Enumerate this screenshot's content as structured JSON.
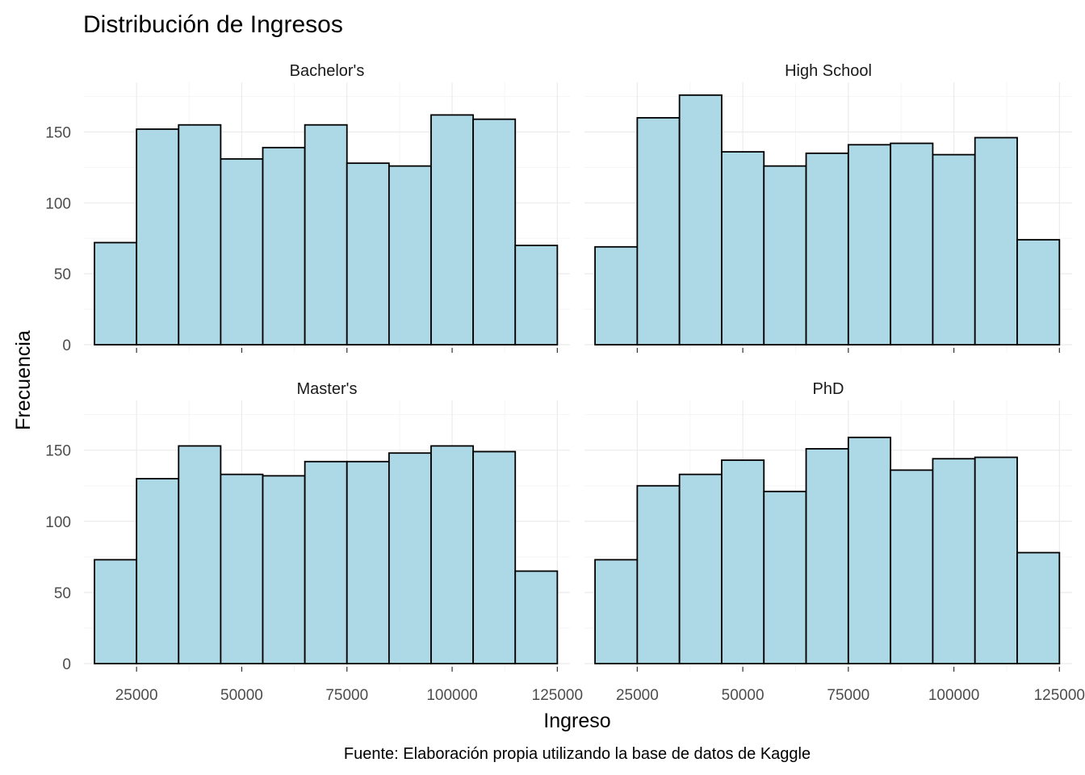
{
  "chart_data": {
    "type": "bar",
    "title": "Distribución de Ingresos",
    "xlabel": "Ingreso",
    "ylabel": "Frecuencia",
    "caption": "Fuente: Elaboración propia utilizando la base de datos de Kaggle",
    "bin_width": 10000,
    "bin_starts": [
      15000,
      25000,
      35000,
      45000,
      55000,
      65000,
      75000,
      85000,
      95000,
      105000,
      115000
    ],
    "x_ticks": [
      25000,
      50000,
      75000,
      100000,
      125000
    ],
    "x_tick_labels": [
      "25000",
      "50000",
      "75000",
      "100000",
      "125000"
    ],
    "y_ticks": [
      0,
      50,
      100,
      150
    ],
    "y_tick_labels": [
      "0",
      "50",
      "100",
      "150"
    ],
    "xlim": [
      12500,
      128000
    ],
    "ylim": [
      0,
      185
    ],
    "grid": true,
    "bar_color": "#add8e6",
    "bar_outline": "#000000",
    "facets": [
      {
        "name": "Bachelor's",
        "values": [
          72,
          152,
          155,
          131,
          139,
          155,
          128,
          126,
          162,
          159,
          70
        ]
      },
      {
        "name": "High School",
        "values": [
          69,
          160,
          176,
          136,
          126,
          135,
          141,
          142,
          134,
          146,
          74
        ]
      },
      {
        "name": "Master's",
        "values": [
          73,
          130,
          153,
          133,
          132,
          142,
          142,
          148,
          153,
          149,
          65
        ]
      },
      {
        "name": "PhD",
        "values": [
          73,
          125,
          133,
          143,
          121,
          151,
          159,
          136,
          144,
          145,
          78
        ]
      }
    ]
  }
}
